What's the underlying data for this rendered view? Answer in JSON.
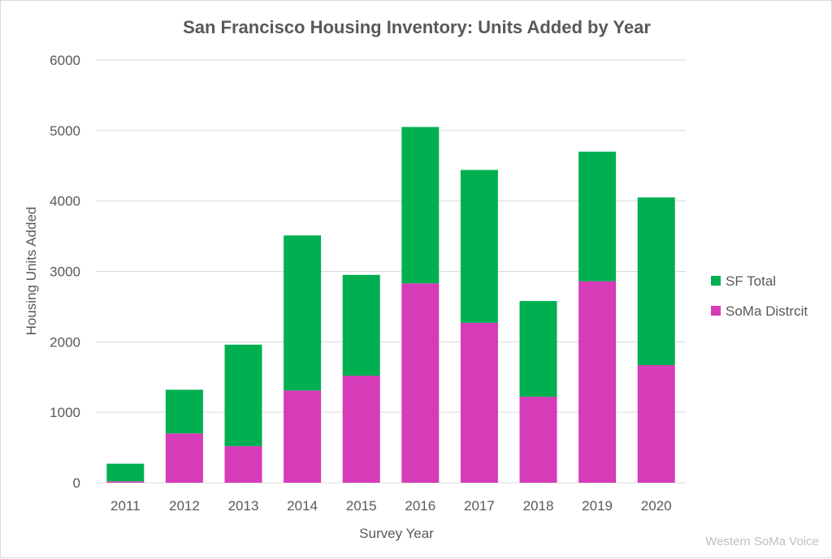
{
  "chart_data": {
    "type": "bar",
    "stacked": true,
    "title": "San Francisco Housing Inventory: Units Added by Year",
    "xlabel": "Survey Year",
    "ylabel": "Housing Units Added",
    "categories": [
      "2011",
      "2012",
      "2013",
      "2014",
      "2015",
      "2016",
      "2017",
      "2018",
      "2019",
      "2020"
    ],
    "series": [
      {
        "name": "SoMa Distrcit",
        "color": "#d63bb8",
        "values": [
          20,
          700,
          520,
          1310,
          1520,
          2830,
          2270,
          1220,
          2860,
          1670
        ]
      },
      {
        "name": "SF Total",
        "color": "#00b050",
        "stack_totals": [
          270,
          1320,
          1960,
          3510,
          2950,
          5050,
          4440,
          2580,
          4700,
          4050
        ]
      }
    ],
    "ylim": [
      0,
      6000
    ],
    "yticks": [
      "0",
      "1000",
      "2000",
      "3000",
      "4000",
      "5000",
      "6000"
    ],
    "grid": true,
    "legend": "right"
  },
  "watermark": "Western SoMa Voice"
}
